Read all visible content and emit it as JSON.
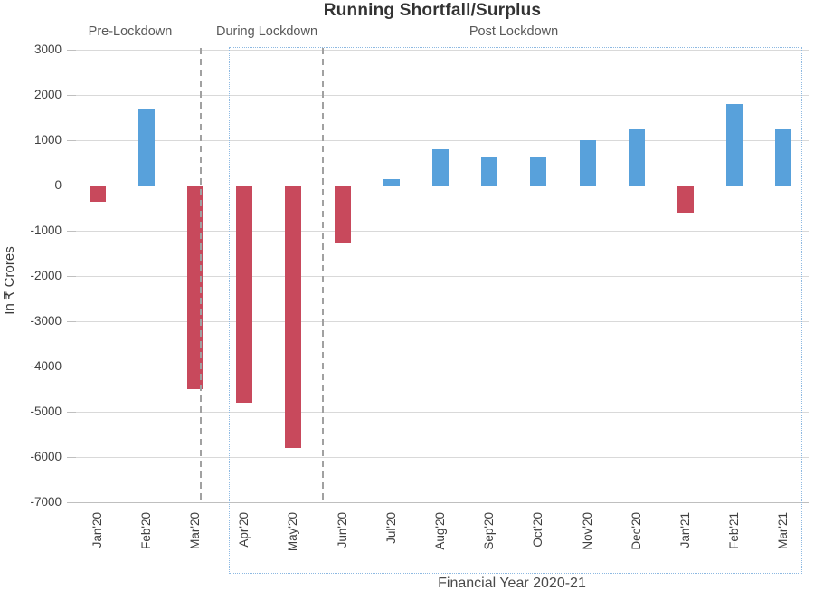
{
  "chart_data": {
    "type": "bar",
    "title": "Running Shortfall/Surplus",
    "xlabel": "Financial Year 2020-21",
    "ylabel": "In ₹ Crores",
    "categories": [
      "Jan'20",
      "Feb'20",
      "Mar'20",
      "Apr'20",
      "May'20",
      "Jun'20",
      "Jul'20",
      "Aug'20",
      "Sep'20",
      "Oct'20",
      "Nov'20",
      "Dec'20",
      "Jan'21",
      "Feb'21",
      "Mar'21"
    ],
    "values": [
      -350,
      1700,
      -4500,
      -4800,
      -5800,
      -1250,
      150,
      800,
      650,
      650,
      1000,
      1250,
      -600,
      1800,
      1250
    ],
    "ylim": [
      -7000,
      3000
    ],
    "yticks": [
      3000,
      2000,
      1000,
      0,
      -1000,
      -2000,
      -3000,
      -4000,
      -5000,
      -6000,
      -7000
    ],
    "grid": true,
    "legend": false,
    "colors": {
      "positive": "#58A1DB",
      "negative": "#C8495C",
      "gridline": "#D9D9D9",
      "axis": "#BFBFBF",
      "separator": "#A1A1A1",
      "highlight_box": "#8DB9E2"
    },
    "annotations": {
      "region_labels": [
        "Pre-Lockdown",
        "During Lockdown",
        "Post Lockdown"
      ],
      "separators_between": [
        [
          "Mar'20",
          "Apr'20"
        ],
        [
          "May'20",
          "Jun'20"
        ]
      ],
      "separator_style": "gray-dashed-vertical",
      "highlight_box_categories": [
        "Apr'20",
        "Mar'21"
      ],
      "highlight_box_style": "blue-dotted-rectangle"
    }
  }
}
